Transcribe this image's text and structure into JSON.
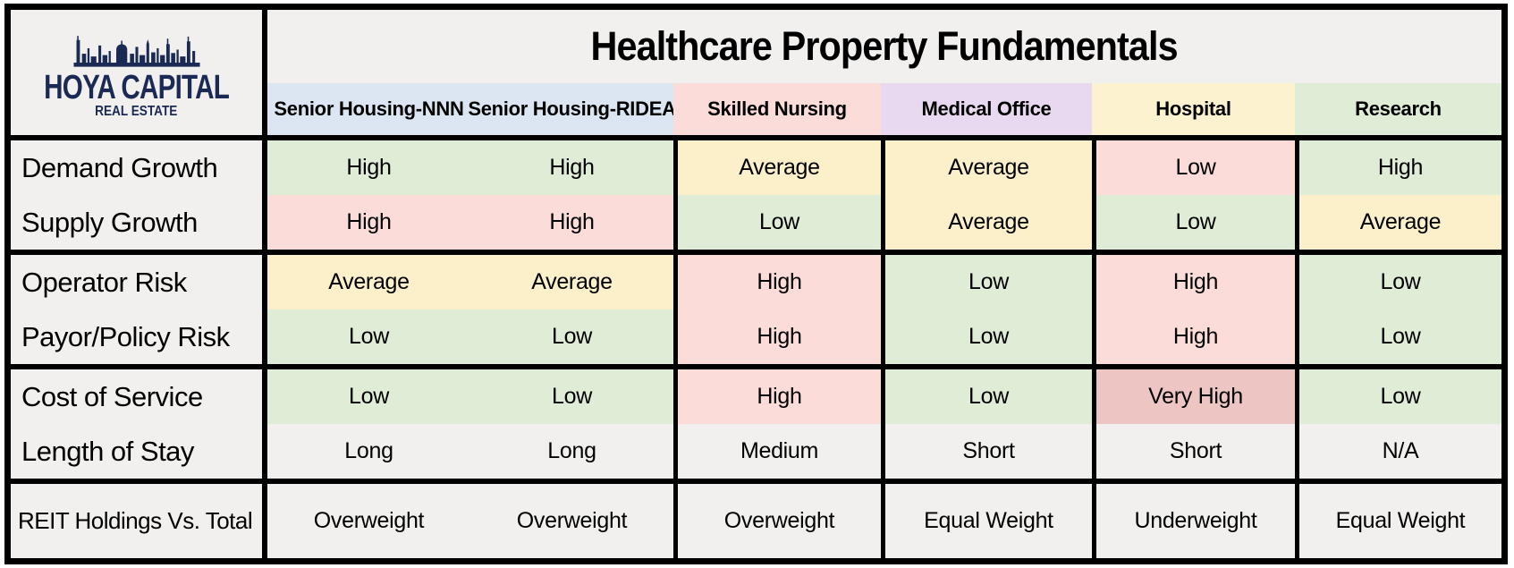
{
  "logo": {
    "name": "HOYA CAPITAL",
    "tagline": "REAL ESTATE"
  },
  "title": "Healthcare Property Fundamentals",
  "colors": {
    "navy": "#1b2a55",
    "border": "#000000",
    "plain": "#f1f0ee",
    "green": "#dfecd6",
    "yellow": "#fcf0cb",
    "pink": "#fbdcd9",
    "red": "#edc6c3",
    "header_blue": "#dce6f2",
    "header_pink": "#fbdcd9",
    "header_purple": "#e8d9f1",
    "header_yellow": "#fdf2cf",
    "header_green": "#dfecd6"
  },
  "columns": [
    {
      "label": "Senior Housing-NNN",
      "bg": "header_blue"
    },
    {
      "label": "Senior Housing-RIDEA",
      "bg": "header_blue"
    },
    {
      "label": "Skilled Nursing",
      "bg": "header_pink"
    },
    {
      "label": "Medical Office",
      "bg": "header_purple"
    },
    {
      "label": "Hospital",
      "bg": "header_yellow"
    },
    {
      "label": "Research",
      "bg": "header_green"
    }
  ],
  "groups": [
    {
      "rows": [
        {
          "label": "Demand Growth",
          "cells": [
            {
              "text": "High",
              "color": "green"
            },
            {
              "text": "High",
              "color": "green"
            },
            {
              "text": "Average",
              "color": "yellow"
            },
            {
              "text": "Average",
              "color": "yellow"
            },
            {
              "text": "Low",
              "color": "pink"
            },
            {
              "text": "High",
              "color": "green"
            }
          ]
        },
        {
          "label": "Supply Growth",
          "cells": [
            {
              "text": "High",
              "color": "pink"
            },
            {
              "text": "High",
              "color": "pink"
            },
            {
              "text": "Low",
              "color": "green"
            },
            {
              "text": "Average",
              "color": "yellow"
            },
            {
              "text": "Low",
              "color": "green"
            },
            {
              "text": "Average",
              "color": "yellow"
            }
          ]
        }
      ]
    },
    {
      "rows": [
        {
          "label": "Operator Risk",
          "cells": [
            {
              "text": "Average",
              "color": "yellow"
            },
            {
              "text": "Average",
              "color": "yellow"
            },
            {
              "text": "High",
              "color": "pink"
            },
            {
              "text": "Low",
              "color": "green"
            },
            {
              "text": "High",
              "color": "pink"
            },
            {
              "text": "Low",
              "color": "green"
            }
          ]
        },
        {
          "label": "Payor/Policy Risk",
          "cells": [
            {
              "text": "Low",
              "color": "green"
            },
            {
              "text": "Low",
              "color": "green"
            },
            {
              "text": "High",
              "color": "pink"
            },
            {
              "text": "Low",
              "color": "green"
            },
            {
              "text": "High",
              "color": "pink"
            },
            {
              "text": "Low",
              "color": "green"
            }
          ]
        }
      ]
    },
    {
      "rows": [
        {
          "label": "Cost of Service",
          "cells": [
            {
              "text": "Low",
              "color": "green"
            },
            {
              "text": "Low",
              "color": "green"
            },
            {
              "text": "High",
              "color": "pink"
            },
            {
              "text": "Low",
              "color": "green"
            },
            {
              "text": "Very High",
              "color": "red"
            },
            {
              "text": "Low",
              "color": "green"
            }
          ]
        },
        {
          "label": "Length of Stay",
          "cells": [
            {
              "text": "Long",
              "color": "plain"
            },
            {
              "text": "Long",
              "color": "plain"
            },
            {
              "text": "Medium",
              "color": "plain"
            },
            {
              "text": "Short",
              "color": "plain"
            },
            {
              "text": "Short",
              "color": "plain"
            },
            {
              "text": "N/A",
              "color": "plain"
            }
          ]
        }
      ]
    }
  ],
  "footer": {
    "label": "REIT Holdings Vs. Total",
    "cells": [
      {
        "text": "Overweight",
        "color": "plain"
      },
      {
        "text": "Overweight",
        "color": "plain"
      },
      {
        "text": "Overweight",
        "color": "plain"
      },
      {
        "text": "Equal Weight",
        "color": "plain"
      },
      {
        "text": "Underweight",
        "color": "plain"
      },
      {
        "text": "Equal Weight",
        "color": "plain"
      }
    ]
  },
  "chart_data": {
    "type": "table",
    "title": "Healthcare Property Fundamentals",
    "columns": [
      "Senior Housing-NNN",
      "Senior Housing-RIDEA",
      "Skilled Nursing",
      "Medical Office",
      "Hospital",
      "Research"
    ],
    "rows": [
      {
        "label": "Demand Growth",
        "values": [
          "High",
          "High",
          "Average",
          "Average",
          "Low",
          "High"
        ]
      },
      {
        "label": "Supply Growth",
        "values": [
          "High",
          "High",
          "Low",
          "Average",
          "Low",
          "Average"
        ]
      },
      {
        "label": "Operator Risk",
        "values": [
          "Average",
          "Average",
          "High",
          "Low",
          "High",
          "Low"
        ]
      },
      {
        "label": "Payor/Policy Risk",
        "values": [
          "Low",
          "Low",
          "High",
          "Low",
          "High",
          "Low"
        ]
      },
      {
        "label": "Cost of Service",
        "values": [
          "Low",
          "Low",
          "High",
          "Low",
          "Very High",
          "Low"
        ]
      },
      {
        "label": "Length of Stay",
        "values": [
          "Long",
          "Long",
          "Medium",
          "Short",
          "Short",
          "N/A"
        ]
      },
      {
        "label": "REIT Holdings Vs. Total",
        "values": [
          "Overweight",
          "Overweight",
          "Overweight",
          "Equal Weight",
          "Underweight",
          "Equal Weight"
        ]
      }
    ]
  }
}
